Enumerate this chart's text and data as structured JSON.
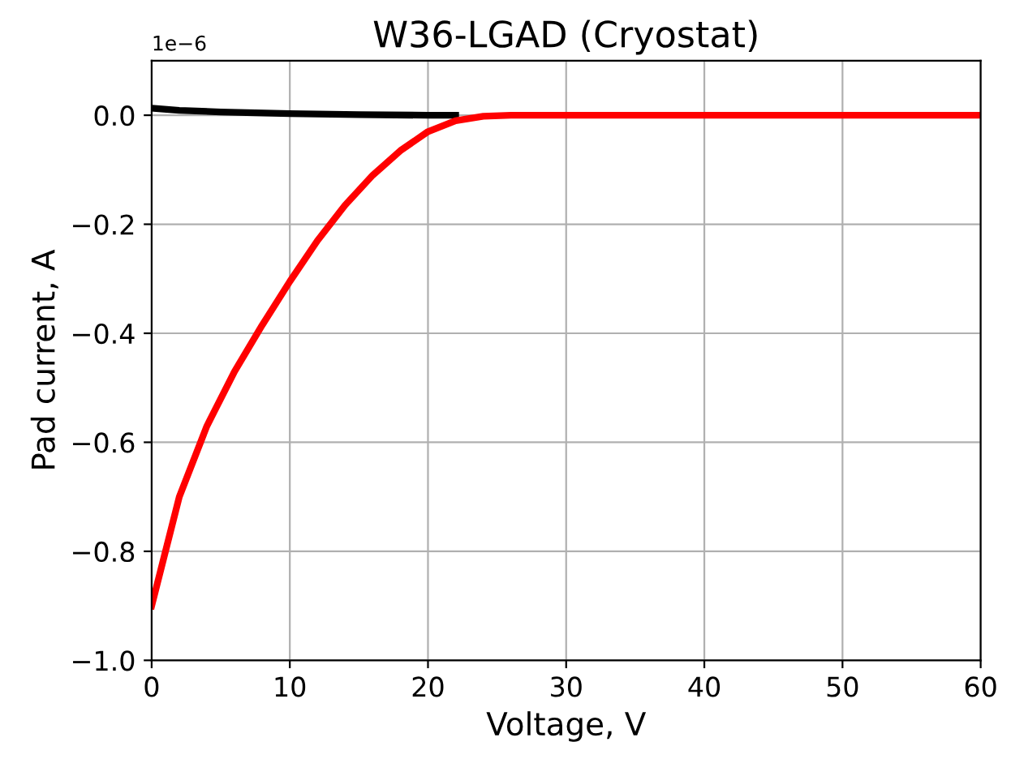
{
  "chart_data": {
    "type": "line",
    "title": "W36-LGAD (Cryostat)",
    "xlabel": "Voltage, V",
    "ylabel": "Pad current, A",
    "annotations": [
      "1e−6"
    ],
    "series": [
      {
        "color": "#000000",
        "x": [
          0,
          2,
          5,
          10,
          15,
          20,
          22
        ],
        "values": [
          0.013,
          0.009,
          0.006,
          0.003,
          0.001,
          0,
          0
        ]
      },
      {
        "color": "#ff0000",
        "x": [
          0,
          2,
          4,
          6,
          8,
          10,
          12,
          14,
          16,
          18,
          20,
          22,
          24,
          26,
          30,
          40,
          50,
          60
        ],
        "values": [
          -0.9,
          -0.7,
          -0.57,
          -0.47,
          -0.385,
          -0.305,
          -0.23,
          -0.165,
          -0.11,
          -0.065,
          -0.03,
          -0.01,
          -0.002,
          0,
          0,
          0,
          0,
          0
        ]
      }
    ],
    "xlim": [
      0,
      60
    ],
    "xticks": [
      0,
      10,
      20,
      30,
      40,
      50,
      60
    ],
    "ylim": [
      -1.0,
      0.1
    ],
    "yticks": [
      {
        "value": -1.0,
        "label": "−1.0"
      },
      {
        "value": -0.8,
        "label": "−0.8"
      },
      {
        "value": -0.6,
        "label": "−0.6"
      },
      {
        "value": -0.4,
        "label": "−0.4"
      },
      {
        "value": -0.2,
        "label": "−0.2"
      },
      {
        "value": 0.0,
        "label": "0.0"
      }
    ],
    "grid": true,
    "marker": "none",
    "line_style": "solid"
  }
}
